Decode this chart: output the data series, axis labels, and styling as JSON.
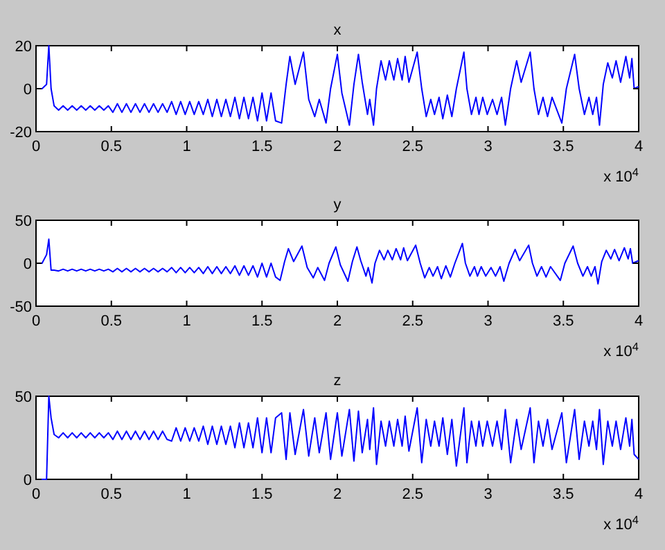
{
  "chart_data": [
    {
      "type": "line",
      "title": "x",
      "xlim": [
        0,
        4
      ],
      "xticks": [
        0,
        0.5,
        1,
        1.5,
        2,
        2.5,
        3,
        3.5,
        4
      ],
      "ylim": [
        -20,
        20
      ],
      "yticks": [
        -20,
        0,
        20
      ],
      "annotations": [
        "x 10$^{4}$"
      ],
      "series": [
        {
          "color": "#0000ff",
          "x": [
            0,
            0.04,
            0.07,
            0.085,
            0.1,
            0.12,
            0.15,
            0.18,
            0.21,
            0.24,
            0.27,
            0.3,
            0.33,
            0.36,
            0.39,
            0.42,
            0.45,
            0.48,
            0.51,
            0.54,
            0.57,
            0.6,
            0.63,
            0.66,
            0.69,
            0.72,
            0.75,
            0.78,
            0.81,
            0.84,
            0.87,
            0.9,
            0.93,
            0.96,
            0.99,
            1.02,
            1.05,
            1.08,
            1.11,
            1.14,
            1.17,
            1.2,
            1.23,
            1.26,
            1.29,
            1.32,
            1.35,
            1.38,
            1.41,
            1.44,
            1.47,
            1.5,
            1.53,
            1.56,
            1.59,
            1.63,
            1.66,
            1.685,
            1.72,
            1.775,
            1.81,
            1.85,
            1.88,
            1.925,
            1.955,
            2.0,
            2.03,
            2.08,
            2.11,
            2.14,
            2.165,
            2.2,
            2.215,
            2.24,
            2.26,
            2.29,
            2.32,
            2.345,
            2.375,
            2.4,
            2.43,
            2.45,
            2.475,
            2.53,
            2.56,
            2.59,
            2.62,
            2.645,
            2.675,
            2.7,
            2.73,
            2.76,
            2.79,
            2.84,
            2.86,
            2.89,
            2.92,
            2.94,
            2.965,
            2.995,
            3.03,
            3.06,
            3.09,
            3.115,
            3.15,
            3.19,
            3.22,
            3.28,
            3.305,
            3.335,
            3.365,
            3.395,
            3.425,
            3.49,
            3.52,
            3.575,
            3.605,
            3.64,
            3.67,
            3.695,
            3.72,
            3.74,
            3.765,
            3.795,
            3.825,
            3.85,
            3.88,
            3.915,
            3.94,
            3.955,
            3.97,
            4.0
          ],
          "values": [
            0,
            0,
            2,
            20,
            0,
            -8,
            -10,
            -8,
            -10,
            -8,
            -10,
            -8,
            -10,
            -8,
            -10,
            -8,
            -10,
            -8,
            -11,
            -7,
            -11,
            -7,
            -11,
            -7,
            -11,
            -7,
            -11,
            -7,
            -11,
            -7,
            -11,
            -6,
            -12,
            -6,
            -12,
            -6,
            -12,
            -6,
            -12,
            -5,
            -13,
            -5,
            -13,
            -5,
            -13,
            -4,
            -14,
            -4,
            -14,
            -4,
            -15,
            -2,
            -15,
            -2,
            -15,
            -16,
            2,
            15,
            2,
            17,
            -5,
            -13,
            -5,
            -16,
            0,
            16,
            -2,
            -17,
            2,
            16,
            3,
            -12,
            -5,
            -17,
            0,
            13,
            4,
            13,
            4,
            14,
            4,
            15,
            3,
            17,
            0,
            -13,
            -5,
            -12,
            -4,
            -14,
            -3,
            -13,
            0,
            17,
            0,
            -12,
            -4,
            -12,
            -4,
            -12,
            -5,
            -12,
            -4,
            -17,
            0,
            13,
            3,
            17,
            0,
            -12,
            -4,
            -13,
            -4,
            -16,
            0,
            16,
            0,
            -12,
            -4,
            -12,
            -4,
            -17,
            2,
            12,
            5,
            13,
            3,
            15,
            5,
            14,
            0,
            1
          ]
        }
      ]
    },
    {
      "type": "line",
      "title": "y",
      "xlim": [
        0,
        4
      ],
      "xticks": [
        0,
        0.5,
        1,
        1.5,
        2,
        2.5,
        3,
        3.5,
        4
      ],
      "ylim": [
        -50,
        50
      ],
      "yticks": [
        -50,
        0,
        50
      ],
      "annotations": [
        "x 10$^{4}$"
      ],
      "series": [
        {
          "color": "#0000ff",
          "x": [
            0,
            0.04,
            0.07,
            0.085,
            0.1,
            0.12,
            0.15,
            0.18,
            0.21,
            0.24,
            0.27,
            0.3,
            0.33,
            0.36,
            0.39,
            0.42,
            0.45,
            0.48,
            0.51,
            0.54,
            0.57,
            0.6,
            0.63,
            0.66,
            0.69,
            0.72,
            0.75,
            0.78,
            0.81,
            0.84,
            0.87,
            0.9,
            0.93,
            0.96,
            0.99,
            1.02,
            1.05,
            1.08,
            1.11,
            1.14,
            1.17,
            1.2,
            1.23,
            1.26,
            1.29,
            1.32,
            1.35,
            1.38,
            1.41,
            1.44,
            1.47,
            1.5,
            1.53,
            1.56,
            1.59,
            1.62,
            1.65,
            1.675,
            1.71,
            1.765,
            1.8,
            1.84,
            1.87,
            1.915,
            1.945,
            1.99,
            2.02,
            2.07,
            2.1,
            2.13,
            2.155,
            2.19,
            2.205,
            2.23,
            2.25,
            2.28,
            2.31,
            2.335,
            2.365,
            2.39,
            2.42,
            2.44,
            2.465,
            2.52,
            2.55,
            2.58,
            2.61,
            2.635,
            2.665,
            2.69,
            2.72,
            2.75,
            2.78,
            2.83,
            2.85,
            2.88,
            2.91,
            2.93,
            2.955,
            2.985,
            3.02,
            3.05,
            3.08,
            3.105,
            3.14,
            3.18,
            3.21,
            3.27,
            3.295,
            3.325,
            3.355,
            3.385,
            3.415,
            3.48,
            3.51,
            3.565,
            3.595,
            3.63,
            3.66,
            3.685,
            3.71,
            3.73,
            3.755,
            3.785,
            3.815,
            3.84,
            3.87,
            3.905,
            3.93,
            3.945,
            3.96,
            4.0
          ],
          "values": [
            0,
            0,
            10,
            28,
            -8,
            -8,
            -9,
            -7,
            -9,
            -7,
            -9,
            -7,
            -9,
            -7,
            -9,
            -7,
            -9,
            -7,
            -10,
            -6,
            -10,
            -6,
            -10,
            -6,
            -10,
            -6,
            -10,
            -6,
            -10,
            -6,
            -10,
            -5,
            -11,
            -5,
            -11,
            -5,
            -11,
            -5,
            -12,
            -4,
            -12,
            -4,
            -12,
            -4,
            -12,
            -3,
            -14,
            -3,
            -14,
            -3,
            -16,
            0,
            -16,
            0,
            -16,
            -20,
            2,
            17,
            2,
            20,
            -5,
            -17,
            -5,
            -20,
            0,
            19,
            -2,
            -21,
            2,
            19,
            3,
            -15,
            -5,
            -23,
            0,
            15,
            4,
            15,
            4,
            17,
            4,
            18,
            3,
            21,
            0,
            -17,
            -5,
            -15,
            -4,
            -18,
            -3,
            -16,
            0,
            23,
            0,
            -15,
            -4,
            -15,
            -4,
            -15,
            -5,
            -15,
            -4,
            -21,
            0,
            16,
            3,
            21,
            0,
            -15,
            -4,
            -16,
            -4,
            -20,
            0,
            20,
            0,
            -15,
            -4,
            -15,
            -4,
            -24,
            2,
            15,
            5,
            16,
            3,
            18,
            5,
            17,
            0,
            3
          ]
        }
      ]
    },
    {
      "type": "line",
      "title": "z",
      "xlim": [
        0,
        4
      ],
      "xticks": [
        0,
        0.5,
        1,
        1.5,
        2,
        2.5,
        3,
        3.5,
        4
      ],
      "ylim": [
        0,
        50
      ],
      "yticks": [
        0,
        50
      ],
      "annotations": [
        "x 10$^{4}$"
      ],
      "series": [
        {
          "color": "#0000ff",
          "x": [
            0,
            0.04,
            0.07,
            0.085,
            0.1,
            0.12,
            0.15,
            0.18,
            0.21,
            0.24,
            0.27,
            0.3,
            0.33,
            0.36,
            0.39,
            0.42,
            0.45,
            0.48,
            0.51,
            0.54,
            0.57,
            0.6,
            0.63,
            0.66,
            0.69,
            0.72,
            0.75,
            0.78,
            0.81,
            0.84,
            0.87,
            0.9,
            0.93,
            0.96,
            0.99,
            1.02,
            1.05,
            1.08,
            1.11,
            1.14,
            1.17,
            1.2,
            1.23,
            1.26,
            1.29,
            1.32,
            1.35,
            1.38,
            1.41,
            1.44,
            1.47,
            1.5,
            1.53,
            1.56,
            1.59,
            1.63,
            1.66,
            1.685,
            1.72,
            1.775,
            1.81,
            1.85,
            1.88,
            1.925,
            1.955,
            2.0,
            2.03,
            2.08,
            2.11,
            2.14,
            2.165,
            2.2,
            2.215,
            2.24,
            2.26,
            2.29,
            2.32,
            2.345,
            2.375,
            2.4,
            2.43,
            2.45,
            2.475,
            2.53,
            2.56,
            2.59,
            2.62,
            2.645,
            2.675,
            2.7,
            2.73,
            2.76,
            2.79,
            2.84,
            2.86,
            2.89,
            2.92,
            2.94,
            2.965,
            2.995,
            3.03,
            3.06,
            3.09,
            3.115,
            3.15,
            3.19,
            3.22,
            3.28,
            3.305,
            3.335,
            3.365,
            3.395,
            3.425,
            3.49,
            3.52,
            3.575,
            3.605,
            3.64,
            3.67,
            3.695,
            3.72,
            3.74,
            3.765,
            3.795,
            3.825,
            3.85,
            3.88,
            3.915,
            3.94,
            3.955,
            3.97,
            4.0
          ],
          "values": [
            0,
            0,
            0,
            50,
            37,
            27,
            25,
            28,
            25,
            28,
            25,
            28,
            25,
            28,
            25,
            28,
            25,
            28,
            24,
            29,
            24,
            29,
            24,
            29,
            24,
            29,
            24,
            29,
            24,
            29,
            24,
            23,
            31,
            23,
            31,
            23,
            31,
            23,
            32,
            21,
            32,
            21,
            32,
            21,
            32,
            19,
            34,
            19,
            34,
            19,
            37,
            16,
            37,
            16,
            37,
            40,
            12,
            40,
            15,
            42,
            14,
            37,
            16,
            40,
            12,
            40,
            14,
            42,
            11,
            41,
            16,
            36,
            18,
            43,
            9,
            35,
            20,
            35,
            20,
            36,
            20,
            38,
            17,
            43,
            10,
            36,
            20,
            35,
            20,
            37,
            15,
            36,
            8,
            43,
            10,
            35,
            20,
            35,
            20,
            35,
            20,
            35,
            18,
            42,
            10,
            36,
            18,
            43,
            10,
            35,
            20,
            36,
            18,
            40,
            10,
            42,
            12,
            35,
            20,
            35,
            18,
            42,
            9,
            35,
            20,
            35,
            18,
            37,
            20,
            36,
            15,
            12
          ]
        }
      ]
    }
  ]
}
